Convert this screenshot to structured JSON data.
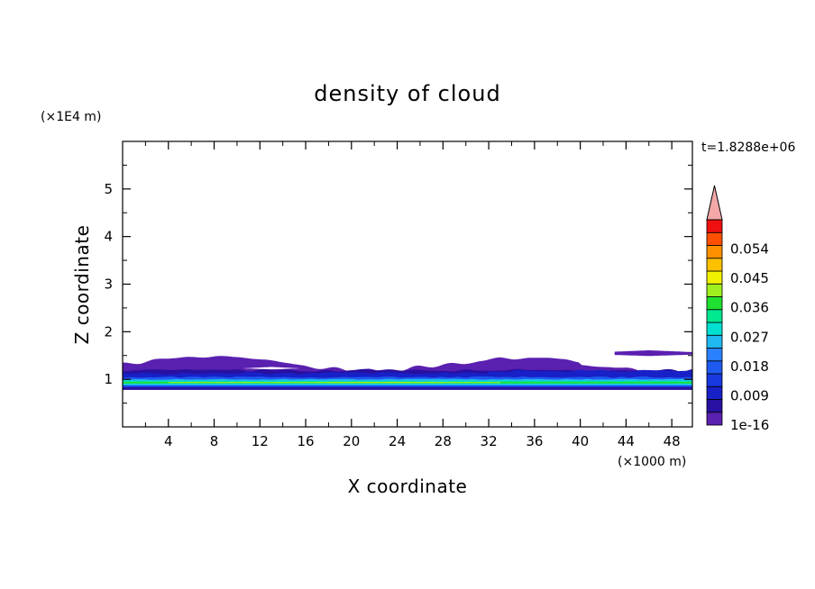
{
  "chart_data": {
    "type": "heatmap",
    "title": "density of cloud",
    "xlabel": "X coordinate",
    "ylabel": "Z coordinate",
    "x_unit": "(×1000 m)",
    "y_unit": "(×1E4 m)",
    "time_label": "t=1.8288e+06",
    "xlim": [
      0,
      49.8
    ],
    "ylim": [
      0,
      6
    ],
    "x_ticks": [
      4,
      8,
      12,
      16,
      20,
      24,
      28,
      32,
      36,
      40,
      44,
      48
    ],
    "x_tick_labels": [
      "4",
      "8",
      "12",
      "16",
      "20",
      "24",
      "28",
      "32",
      "36",
      "40",
      "44",
      "48"
    ],
    "y_ticks": [
      1,
      2,
      3,
      4,
      5
    ],
    "y_tick_labels": [
      "1",
      "2",
      "3",
      "4",
      "5"
    ],
    "grid": false,
    "colorbar": {
      "min": 1e-16,
      "max": 0.063,
      "step": 0.0045,
      "extend": "max",
      "labels": [
        "1e-16",
        "0.009",
        "0.018",
        "0.027",
        "0.036",
        "0.045",
        "0.054"
      ],
      "label_values": [
        0,
        0.009,
        0.018,
        0.027,
        0.036,
        0.045,
        0.054
      ],
      "colors": [
        "#5a20b0",
        "#2810a0",
        "#1820c8",
        "#1838e0",
        "#1e5af0",
        "#2a80ff",
        "#20b8f0",
        "#00e0d0",
        "#00e890",
        "#20e030",
        "#a0f020",
        "#f0f000",
        "#ffc000",
        "#ff9000",
        "#ff5000",
        "#f01010"
      ],
      "extend_color": "#f4a8a8"
    },
    "cloud_layer": {
      "z_bottom": 0.78,
      "z_top_estimate": 1.4,
      "core_z": [
        0.85,
        1.0
      ],
      "detached_patch": {
        "x_range": [
          43,
          49.8
        ],
        "z": 1.55
      }
    }
  }
}
